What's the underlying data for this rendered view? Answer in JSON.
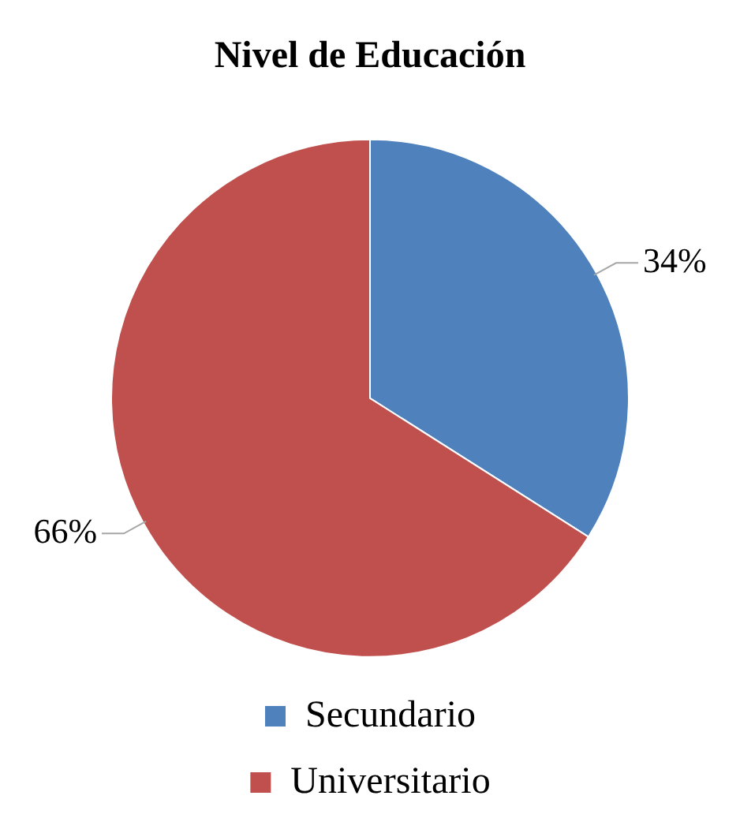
{
  "chart_data": {
    "type": "pie",
    "title": "Nivel de Educación",
    "categories": [
      "Secundario",
      "Universitario"
    ],
    "values": [
      34,
      66
    ],
    "colors": [
      "#4f81bd",
      "#c0504d"
    ],
    "value_labels": [
      "34%",
      "66%"
    ],
    "legend": "bottom"
  }
}
